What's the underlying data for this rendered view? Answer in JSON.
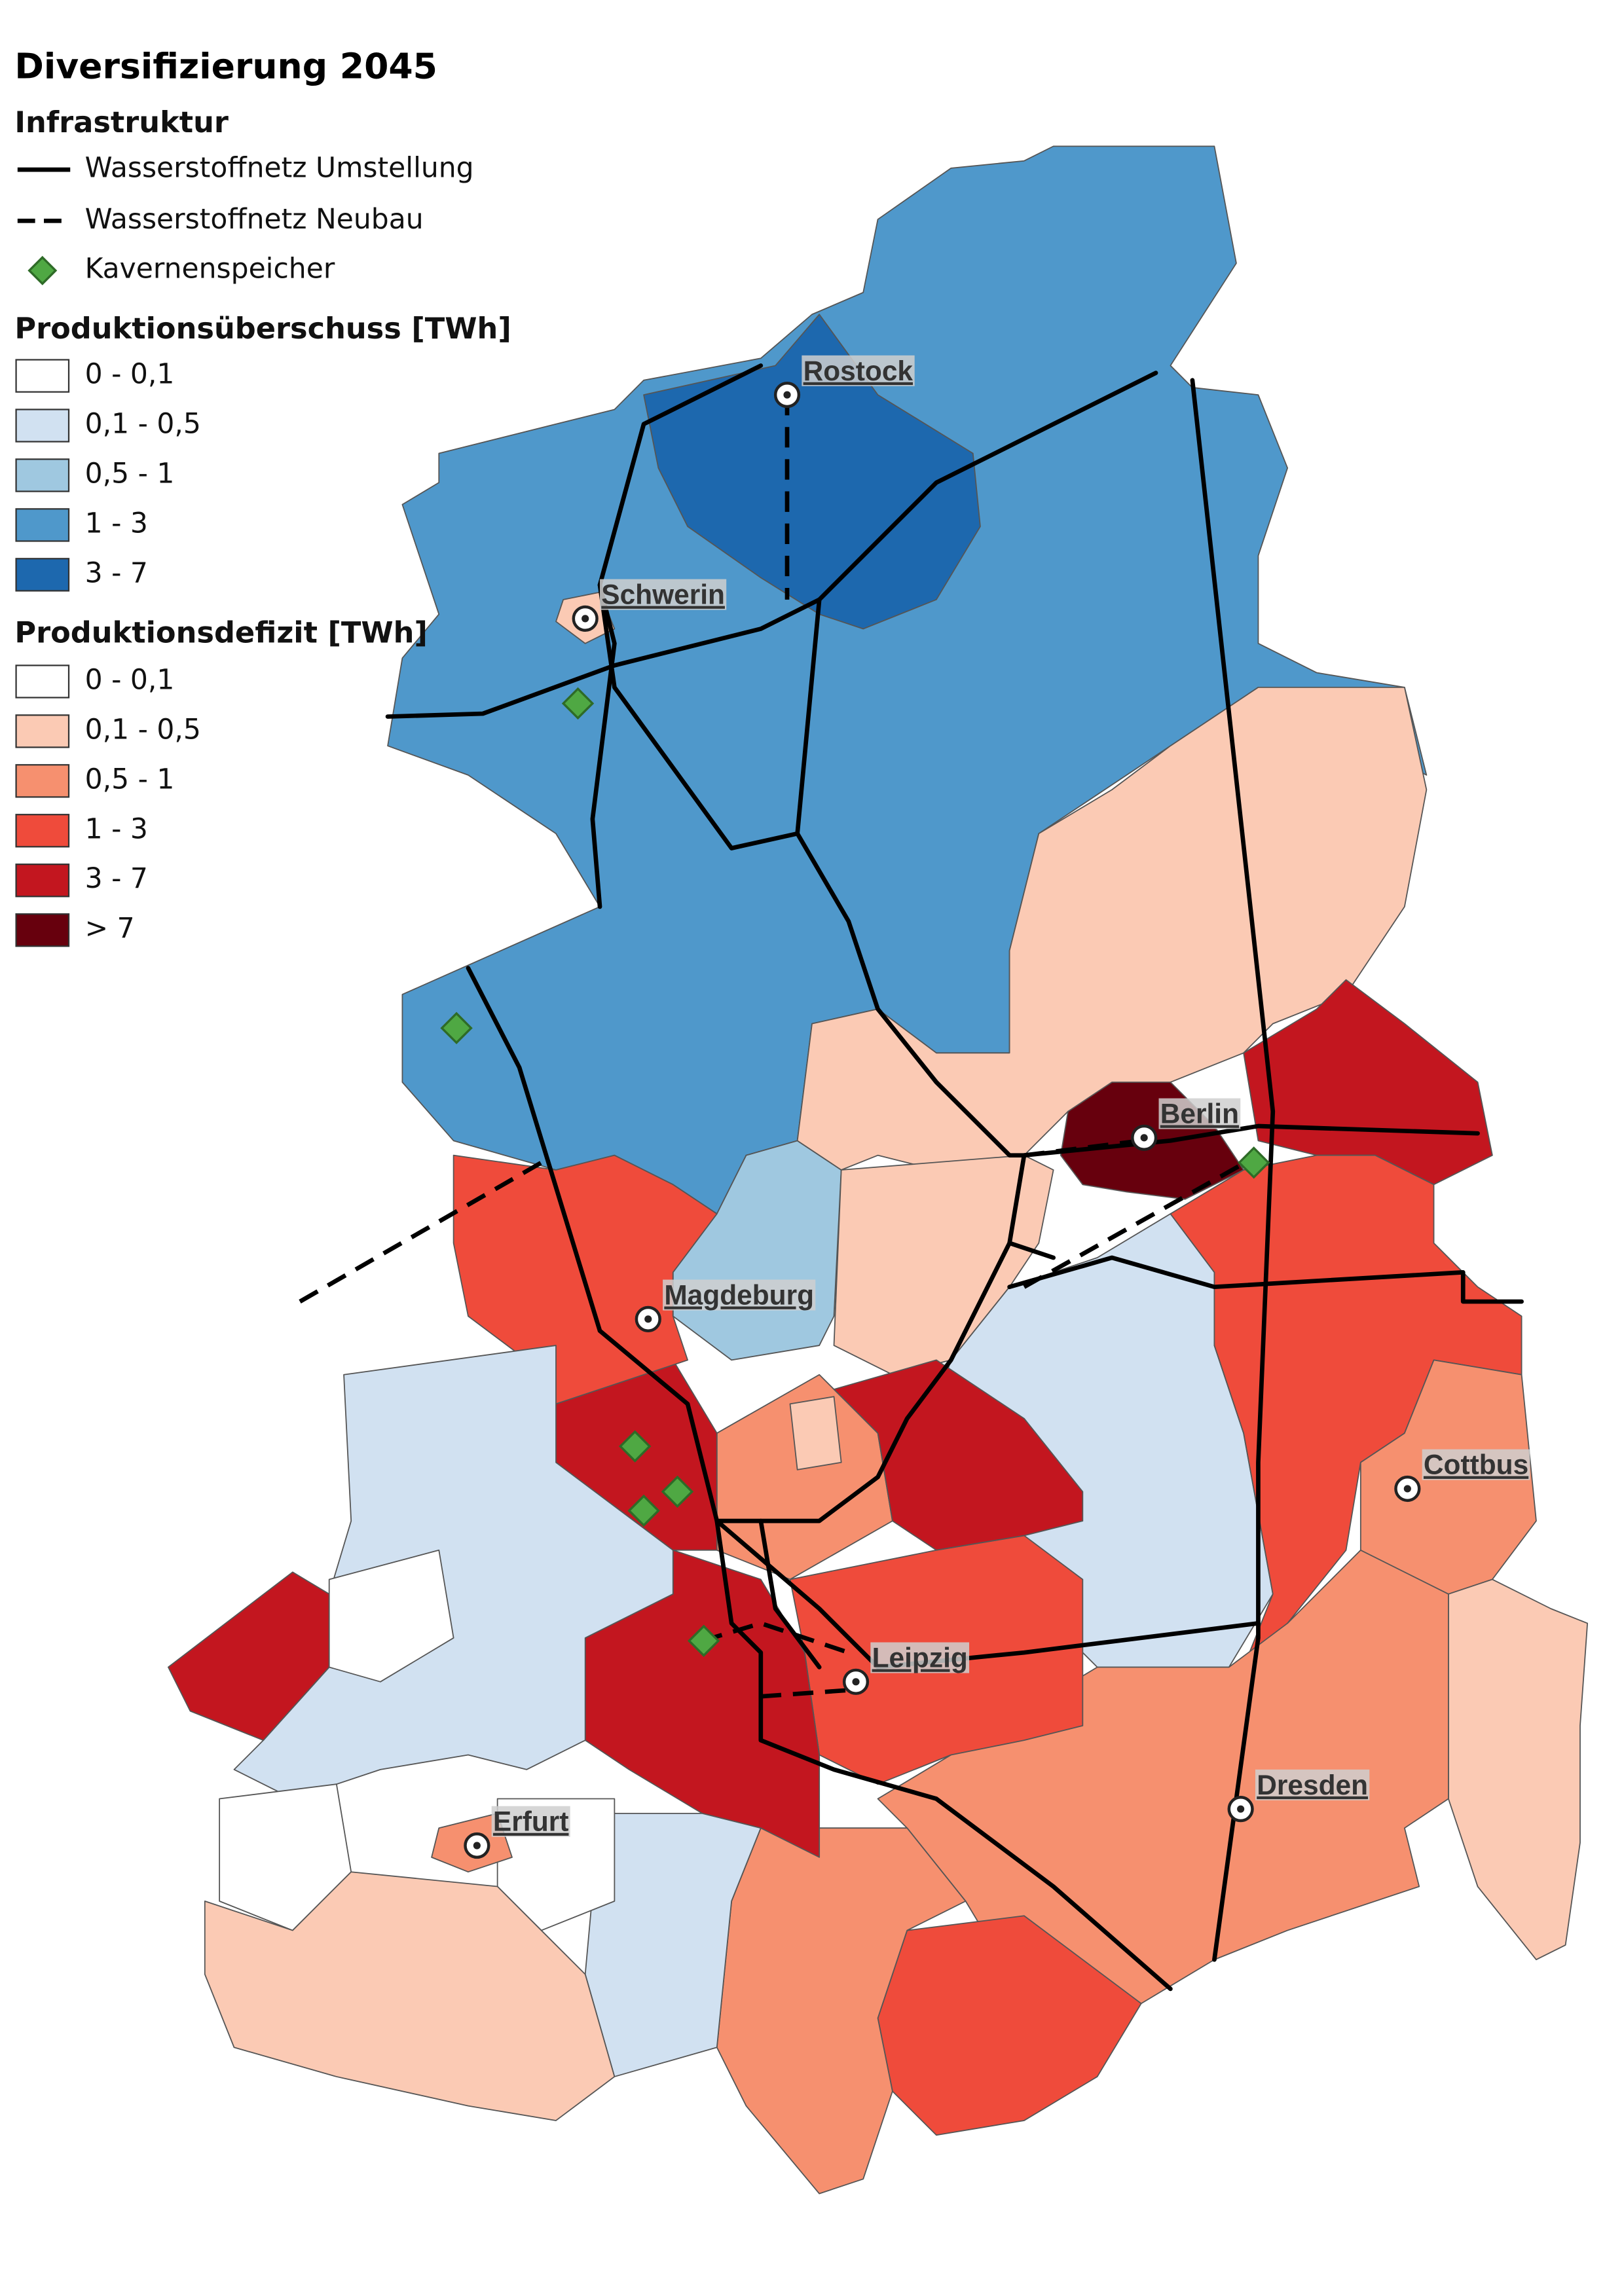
{
  "title": "Diversifizierung 2045",
  "legend": {
    "infrastructure": {
      "heading": "Infrastruktur",
      "items": [
        "Wasserstoffnetz Umstellung",
        "Wasserstoffnetz Neubau",
        "Kavernenspeicher"
      ]
    },
    "surplus": {
      "heading": "Produktionsüberschuss [TWh]",
      "classes": [
        {
          "label": "0 - 0,1",
          "color": "#ffffff"
        },
        {
          "label": "0,1 - 0,5",
          "color": "#d1e1f1"
        },
        {
          "label": "0,5 - 1",
          "color": "#9fc8e0"
        },
        {
          "label": "1 - 3",
          "color": "#4f98cb"
        },
        {
          "label": "3 - 7",
          "color": "#1d68ae"
        }
      ]
    },
    "deficit": {
      "heading": "Produktionsdefizit [TWh]",
      "classes": [
        {
          "label": "0 - 0,1",
          "color": "#ffffff"
        },
        {
          "label": "0,1 - 0,5",
          "color": "#fbcab4"
        },
        {
          "label": "0,5 - 1",
          "color": "#f6906f"
        },
        {
          "label": "1 - 3",
          "color": "#ef4b3b"
        },
        {
          "label": "3 - 7",
          "color": "#c3161f"
        },
        {
          "label": "> 7",
          "color": "#67000d"
        }
      ]
    }
  },
  "cities": [
    "Rostock",
    "Schwerin",
    "Magdeburg",
    "Berlin",
    "Cottbus",
    "Leipzig",
    "Dresden",
    "Erfurt"
  ]
}
